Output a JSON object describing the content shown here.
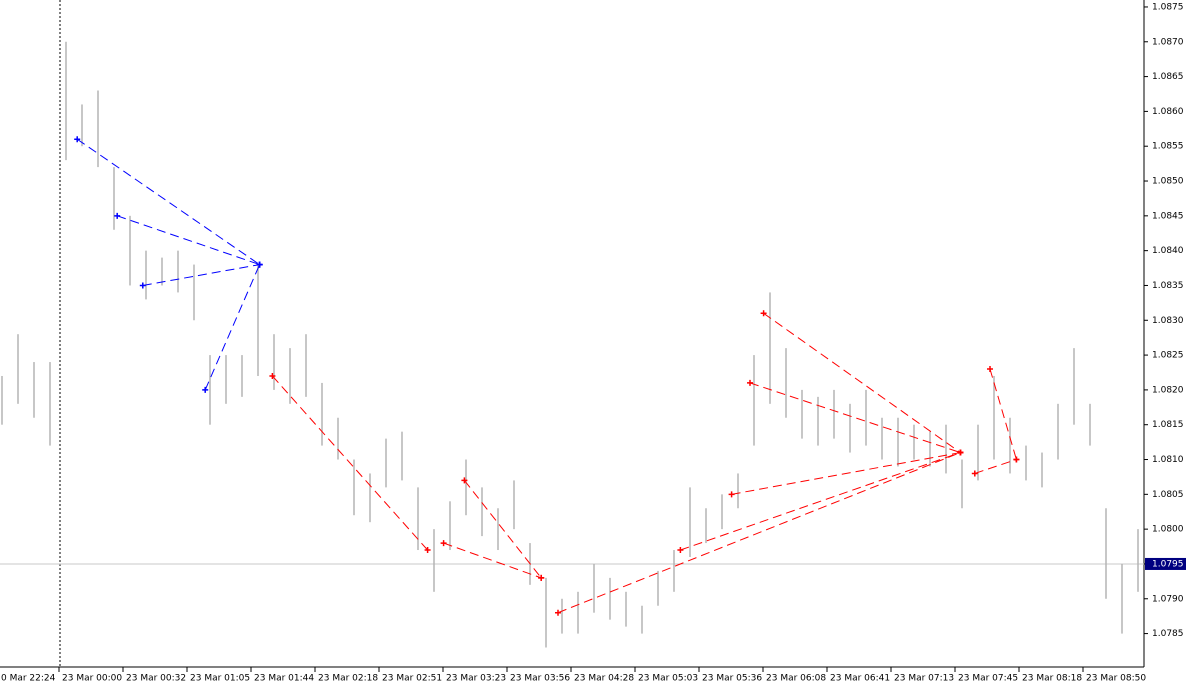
{
  "chart_data": {
    "type": "ohlc",
    "ylim": [
      1.07802,
      1.0876
    ],
    "yticks": [
      1.0875,
      {
        "value": 1.087,
        "label": "1.0870"
      },
      1.0865,
      {
        "value": 1.086,
        "label": "1.0860"
      },
      1.0855,
      {
        "value": 1.085,
        "label": "1.0850"
      },
      1.0845,
      {
        "value": 1.084,
        "label": "1.0840"
      },
      1.0835,
      {
        "value": 1.083,
        "label": "1.0830"
      },
      1.0825,
      {
        "value": 1.082,
        "label": "1.0820"
      },
      1.0815,
      {
        "value": 1.081,
        "label": "1.0810"
      },
      1.0805,
      {
        "value": 1.08,
        "label": "1.0800"
      },
      1.0795,
      {
        "value": 1.079,
        "label": "1.0790"
      },
      1.0785
    ],
    "bid": 1.0795,
    "bar_color": "#b4b4b4",
    "x_labels": [
      "0 Mar 22:24",
      "23 Mar 00:00",
      "23 Mar 00:32",
      "23 Mar 01:05",
      "23 Mar 01:44",
      "23 Mar 02:18",
      "23 Mar 02:51",
      "23 Mar 03:23",
      "23 Mar 03:56",
      "23 Mar 04:28",
      "23 Mar 05:03",
      "23 Mar 05:36",
      "23 Mar 06:08",
      "23 Mar 06:41",
      "23 Mar 07:13",
      "23 Mar 07:45",
      "23 Mar 08:18",
      "23 Mar 08:50"
    ],
    "highs": [
      1.0822,
      1.0828,
      1.0824,
      1.0824,
      1.087,
      1.0861,
      1.0863,
      1.0852,
      1.0845,
      1.084,
      1.0839,
      1.084,
      1.0838,
      1.0825,
      1.0825,
      1.0825,
      1.0838,
      1.0828,
      1.0826,
      1.0828,
      1.0821,
      1.0816,
      1.081,
      1.0808,
      1.0813,
      1.0814,
      1.0806,
      1.08,
      1.0804,
      1.081,
      1.0806,
      1.0803,
      1.0807,
      1.0798,
      1.0793,
      1.079,
      1.0791,
      1.0795,
      1.0793,
      1.0791,
      1.0789,
      1.0794,
      1.0797,
      1.0806,
      1.0803,
      1.0805,
      1.0808,
      1.0825,
      1.0834,
      1.0826,
      1.082,
      1.0819,
      1.082,
      1.0818,
      1.082,
      1.0816,
      1.0816,
      1.0815,
      1.0814,
      1.0815,
      1.081,
      1.0815,
      1.0822,
      1.0816,
      1.0812,
      1.0811,
      1.0818,
      1.0826,
      1.0818,
      1.0803,
      1.0795,
      1.08
    ],
    "lows": [
      1.0815,
      1.0818,
      1.0816,
      1.0812,
      1.0853,
      1.0855,
      1.0852,
      1.0843,
      1.0835,
      1.0833,
      1.0835,
      1.0834,
      1.083,
      1.0815,
      1.0818,
      1.0819,
      1.0822,
      1.082,
      1.0818,
      1.0819,
      1.0812,
      1.081,
      1.0802,
      1.0801,
      1.0806,
      1.0807,
      1.0797,
      1.0791,
      1.0797,
      1.0802,
      1.0799,
      1.0797,
      1.08,
      1.0792,
      1.0783,
      1.0785,
      1.0785,
      1.0788,
      1.0787,
      1.0786,
      1.0785,
      1.0789,
      1.0791,
      1.0796,
      1.0798,
      1.08,
      1.0803,
      1.0812,
      1.0818,
      1.0816,
      1.0813,
      1.0812,
      1.0813,
      1.0811,
      1.0812,
      1.081,
      1.0809,
      1.081,
      1.0809,
      1.0808,
      1.0803,
      1.0807,
      1.081,
      1.0808,
      1.0807,
      1.0806,
      1.081,
      1.0815,
      1.0812,
      1.079,
      1.0785,
      1.0791
    ],
    "buy_trades": {
      "color": "#0000ff",
      "trades": [
        {
          "open_time": 4.7,
          "open": 1.0856,
          "close_time": 16.1,
          "close": 1.0838
        },
        {
          "open_time": 7.2,
          "open": 1.0845,
          "close_time": 16.1,
          "close": 1.0838
        },
        {
          "open_time": 8.8,
          "open": 1.0835,
          "close_time": 16.1,
          "close": 1.0838
        },
        {
          "open_time": 12.7,
          "open": 1.082,
          "close_time": 16.1,
          "close": 1.0838
        }
      ]
    },
    "sell_trades": {
      "color": "#ff0000",
      "trades": [
        {
          "open_time": 16.9,
          "open": 1.0822,
          "close_time": 26.6,
          "close": 1.0797
        },
        {
          "open_time": 27.6,
          "open": 1.0798,
          "close_time": 33.7,
          "close": 1.0793
        },
        {
          "open_time": 28.9,
          "open": 1.0807,
          "close_time": 33.7,
          "close": 1.0793
        },
        {
          "open_time": 34.75,
          "open": 1.0788,
          "close_time": 59.9,
          "close": 1.0811
        },
        {
          "open_time": 42.4,
          "open": 1.0797,
          "close_time": 59.9,
          "close": 1.0811
        },
        {
          "open_time": 45.6,
          "open": 1.0805,
          "close_time": 59.9,
          "close": 1.0811
        },
        {
          "open_time": 46.75,
          "open": 1.0821,
          "close_time": 59.9,
          "close": 1.0811
        },
        {
          "open_time": 47.6,
          "open": 1.0831,
          "close_time": 59.9,
          "close": 1.0811
        },
        {
          "open_time": 60.8,
          "open": 1.0808,
          "close_time": 63.4,
          "close": 1.081
        },
        {
          "open_time": 61.75,
          "open": 1.0823,
          "close_time": 63.4,
          "close": 1.081
        }
      ]
    }
  }
}
